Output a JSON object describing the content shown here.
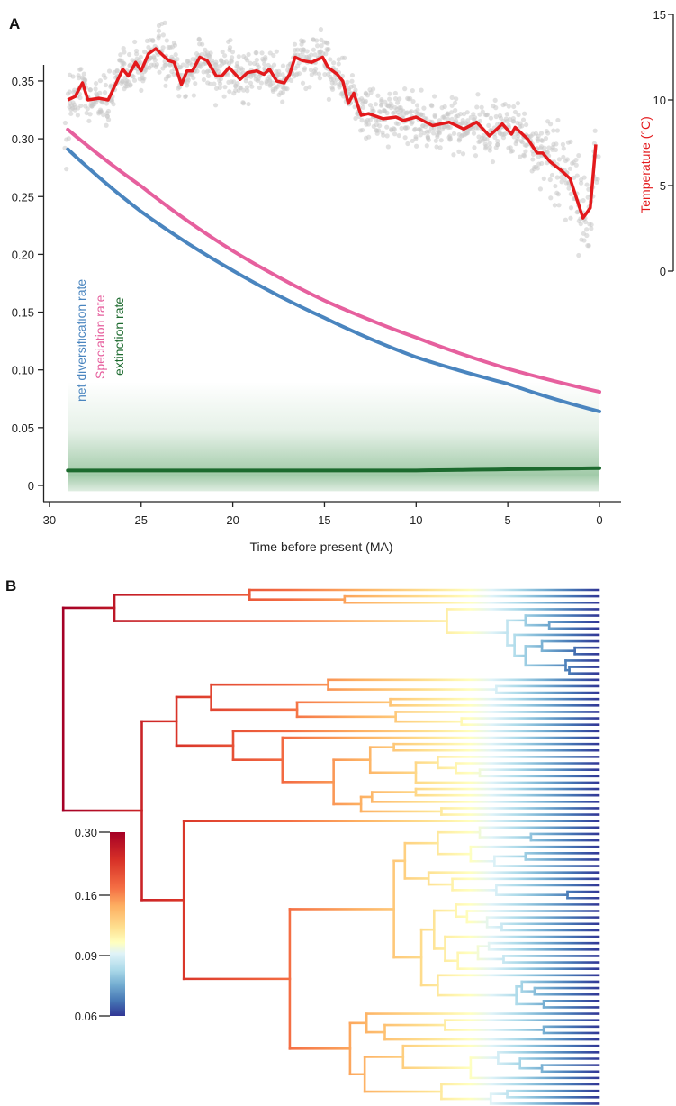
{
  "panels": {
    "a_label": "A",
    "b_label": "B"
  },
  "chart_data": [
    {
      "type": "line",
      "title": "",
      "xlabel": "Time before present (MA)",
      "ylabel": "",
      "y2label": "Temperature (°C)",
      "xlim": [
        30,
        0
      ],
      "ylim": [
        0,
        0.35
      ],
      "y2lim": [
        0,
        15
      ],
      "xticks": [
        "30",
        "25",
        "20",
        "15",
        "10",
        "5",
        "0"
      ],
      "xtick_values": [
        30,
        25,
        20,
        15,
        10,
        5,
        0
      ],
      "yticks": [
        "0",
        "0.05",
        "0.10",
        "0.15",
        "0.20",
        "0.25",
        "0.30",
        "0.35"
      ],
      "ytick_values": [
        0,
        0.05,
        0.1,
        0.15,
        0.2,
        0.25,
        0.3,
        0.35
      ],
      "y2ticks": [
        "0",
        "5",
        "10",
        "15"
      ],
      "y2tick_values": [
        0,
        5,
        10,
        15
      ],
      "legend": [
        "net diversification rate",
        "Speciation rate",
        "extinction rate"
      ],
      "x": [
        29,
        25,
        20,
        15,
        10,
        5,
        0
      ],
      "series": [
        {
          "name": "Speciation rate",
          "color": "#e6609e",
          "values": [
            0.308,
            0.259,
            0.203,
            0.16,
            0.128,
            0.101,
            0.081
          ]
        },
        {
          "name": "net diversification rate",
          "color": "#4a85bf",
          "values": [
            0.291,
            0.237,
            0.186,
            0.145,
            0.111,
            0.088,
            0.064
          ]
        },
        {
          "name": "extinction rate",
          "color": "#1c6a2e",
          "values": [
            0.013,
            0.013,
            0.013,
            0.013,
            0.013,
            0.014,
            0.015
          ]
        }
      ],
      "extinction_band": {
        "upper": 0.09,
        "lower": -0.005,
        "color": "#2f8a3f"
      },
      "temperature": {
        "color": "#e3191c",
        "scatter_color": "#c8c8c8",
        "points": [
          [
            29.0,
            10.0
          ],
          [
            28.6,
            10.2
          ],
          [
            28.2,
            11.0
          ],
          [
            27.9,
            10.0
          ],
          [
            27.3,
            10.1
          ],
          [
            26.8,
            10.0
          ],
          [
            26.0,
            11.8
          ],
          [
            25.7,
            11.4
          ],
          [
            25.3,
            12.2
          ],
          [
            25.0,
            11.7
          ],
          [
            24.6,
            12.7
          ],
          [
            24.2,
            13.0
          ],
          [
            23.5,
            12.3
          ],
          [
            23.2,
            12.2
          ],
          [
            22.8,
            10.9
          ],
          [
            22.5,
            11.7
          ],
          [
            22.2,
            11.7
          ],
          [
            21.8,
            12.5
          ],
          [
            21.4,
            12.3
          ],
          [
            20.9,
            11.4
          ],
          [
            20.6,
            11.4
          ],
          [
            20.2,
            11.9
          ],
          [
            19.6,
            11.2
          ],
          [
            19.2,
            11.6
          ],
          [
            18.7,
            11.7
          ],
          [
            18.3,
            11.5
          ],
          [
            18.0,
            11.8
          ],
          [
            17.6,
            11.1
          ],
          [
            17.2,
            11.0
          ],
          [
            16.9,
            11.5
          ],
          [
            16.6,
            12.5
          ],
          [
            16.2,
            12.3
          ],
          [
            15.7,
            12.2
          ],
          [
            15.1,
            12.5
          ],
          [
            14.8,
            11.9
          ],
          [
            14.3,
            11.5
          ],
          [
            14.0,
            11.1
          ],
          [
            13.7,
            9.8
          ],
          [
            13.4,
            10.4
          ],
          [
            13.0,
            9.1
          ],
          [
            12.6,
            9.2
          ],
          [
            11.8,
            8.9
          ],
          [
            11.1,
            9.0
          ],
          [
            10.7,
            8.8
          ],
          [
            10.0,
            9.0
          ],
          [
            9.1,
            8.5
          ],
          [
            8.2,
            8.7
          ],
          [
            7.4,
            8.3
          ],
          [
            6.7,
            8.7
          ],
          [
            6.0,
            7.9
          ],
          [
            5.3,
            8.6
          ],
          [
            4.8,
            8.0
          ],
          [
            4.6,
            8.4
          ],
          [
            3.9,
            7.7
          ],
          [
            3.4,
            6.9
          ],
          [
            3.1,
            6.9
          ],
          [
            2.7,
            6.4
          ],
          [
            2.0,
            5.8
          ],
          [
            1.6,
            5.4
          ],
          [
            0.9,
            3.1
          ],
          [
            0.5,
            3.7
          ],
          [
            0.2,
            7.4
          ]
        ]
      }
    },
    {
      "type": "dendrogram",
      "colorbar": {
        "ticks": [
          "0.30",
          "0.16",
          "0.09",
          "0.06"
        ],
        "tick_values": [
          0.3,
          0.16,
          0.09,
          0.06
        ],
        "colors": [
          "#a50026",
          "#d73027",
          "#f46d43",
          "#fdae61",
          "#fee090",
          "#ffffbf",
          "#e0f3f8",
          "#abd9e9",
          "#74add1",
          "#4575b4",
          "#313695"
        ]
      },
      "root_age_ma": 29.3,
      "tree": [
        29.3,
        [
          26.5,
          [
            19.1,
            "t",
            [
              13.9,
              "t",
              "t"
            ]
          ],
          [
            8.3,
            "t",
            [
              5.0,
              [
                4.0,
                "t",
                [
                  2.7,
                  "t",
                  "t"
                ]
              ],
              [
                4.6,
                "t",
                [
                  4.0,
                  [
                    3.1,
                    "t",
                    [
                      1.3,
                      "t",
                      "t"
                    ]
                  ],
                  [
                    1.8,
                    "t",
                    [
                      1.6,
                      "t",
                      "t"
                    ]
                  ]
                ]
              ]
            ]
          ]
        ],
        [
          25.0,
          [
            23.1,
            [
              21.2,
              [
                14.8,
                "t",
                [
                  5.6,
                  "t",
                  "t"
                ]
              ],
              [
                16.5,
                [
                  11.4,
                  "t",
                  "t"
                ],
                [
                  11.1,
                  "t",
                  [
                    7.5,
                    "t",
                    "t"
                  ]
                ]
              ]
            ],
            [
              20.0,
              "t",
              [
                17.3,
                "t",
                [
                  14.5,
                  [
                    12.5,
                    [
                      11.2,
                      "t",
                      "t"
                    ],
                    [
                      10.0,
                      [
                        8.8,
                        "t",
                        [
                          7.8,
                          "t",
                          [
                            6.5,
                            "t",
                            "t"
                          ]
                        ]
                      ],
                      "t"
                    ]
                  ],
                  [
                    13.0,
                    [
                      12.4,
                      [
                        10.0,
                        "t",
                        "t"
                      ],
                      "t"
                    ],
                    [
                      8.6,
                      "t",
                      "t"
                    ]
                  ]
                ]
              ]
            ]
          ],
          [
            22.7,
            "t",
            [
              16.9,
              [
                11.2,
                [
                  10.6,
                  [
                    8.8,
                    [
                      6.5,
                      "t",
                      [
                        3.7,
                        "t",
                        "t"
                      ]
                    ],
                    [
                      7.0,
                      "t",
                      [
                        5.7,
                        [
                          4.0,
                          "t",
                          "t"
                        ],
                        "t"
                      ]
                    ]
                  ],
                  [
                    9.3,
                    "t",
                    [
                      8.0,
                      "t",
                      [
                        5.6,
                        "t",
                        [
                          1.7,
                          "t",
                          "t"
                        ]
                      ]
                    ]
                  ]
                ],
                [
                  9.7,
                  [
                    9.0,
                    [
                      7.8,
                      "t",
                      [
                        7.2,
                        "t",
                        [
                          6.1,
                          "t",
                          [
                            5.3,
                            "t",
                            "t"
                          ]
                        ]
                      ]
                    ],
                    [
                      8.4,
                      "t",
                      [
                        7.7,
                        [
                          6.6,
                          [
                            6.0,
                            "t",
                            "t"
                          ],
                          [
                            5.2,
                            "t",
                            "t"
                          ]
                        ],
                        "t"
                      ]
                    ]
                  ],
                  [
                    8.8,
                    "t",
                    [
                      4.5,
                      [
                        4.2,
                        "t",
                        [
                          3.5,
                          "t",
                          "t"
                        ]
                      ],
                      [
                        3.0,
                        "t",
                        "t"
                      ]
                    ]
                  ]
                ]
              ],
              [
                13.6,
                [
                  12.7,
                  "t",
                  [
                    11.7,
                    [
                      8.4,
                      "t",
                      [
                        3.0,
                        "t",
                        "t"
                      ]
                    ],
                    "t"
                  ]
                ],
                [
                  12.8,
                  [
                    10.7,
                    "t",
                    [
                      7.0,
                      [
                        5.5,
                        "t",
                        [
                          4.3,
                          "t",
                          [
                            3.1,
                            "t",
                            "t"
                          ]
                        ]
                      ],
                      "t"
                    ]
                  ],
                  [
                    8.6,
                    "t",
                    [
                      5.9,
                      [
                        5.0,
                        "t",
                        "t"
                      ],
                      "t"
                    ]
                  ]
                ]
              ]
            ]
          ]
        ]
      ]
    }
  ]
}
